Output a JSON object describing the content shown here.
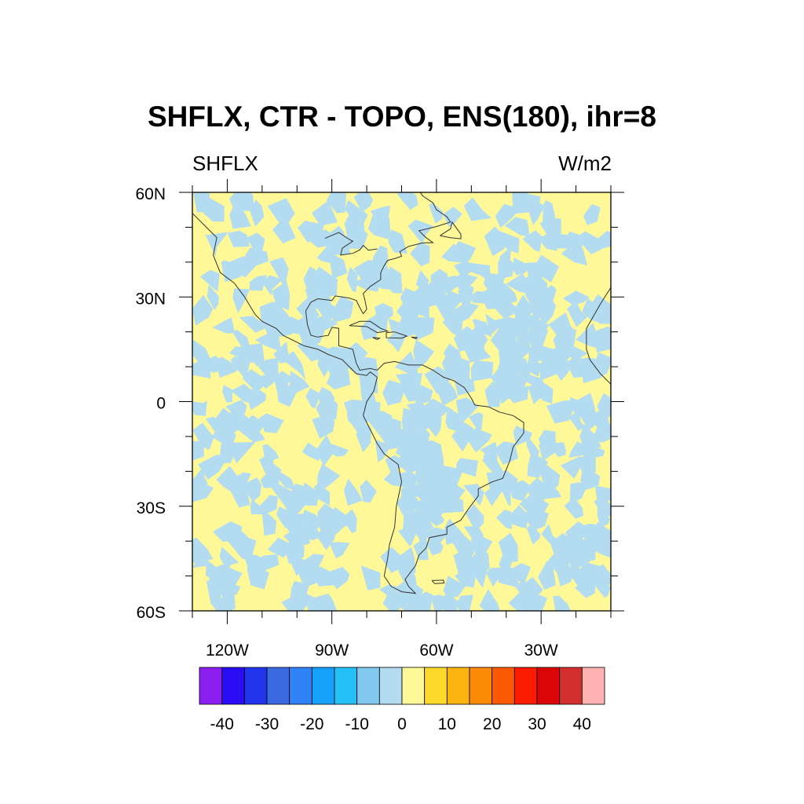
{
  "title": "SHFLX, CTR - TOPO, ENS(180), ihr=8",
  "subtitle_left": "SHFLX",
  "subtitle_right": "W/m2",
  "map": {
    "projection": "cylindrical equidistant",
    "lon_range": [
      -130,
      -10
    ],
    "lat_range": [
      -60,
      60
    ],
    "lat_ticks": [
      {
        "value": 60,
        "label": "60N"
      },
      {
        "value": 30,
        "label": "30N"
      },
      {
        "value": 0,
        "label": "0"
      },
      {
        "value": -30,
        "label": "30S"
      },
      {
        "value": -60,
        "label": "60S"
      }
    ],
    "lon_ticks": [
      {
        "value": -120,
        "label": "120W"
      },
      {
        "value": -90,
        "label": "90W"
      },
      {
        "value": -60,
        "label": "60W"
      },
      {
        "value": -30,
        "label": "30W"
      }
    ],
    "field_colors": {
      "negative_small": "#b4dcf0",
      "positive_small": "#fff898"
    },
    "coastline_color": "#333333"
  },
  "colorbar": {
    "colors": [
      "#8a1ff0",
      "#2a0cf5",
      "#2135ec",
      "#3c6ae0",
      "#2f82f8",
      "#14a0fb",
      "#25c0f8",
      "#82c9ef",
      "#b4dcf0",
      "#fff898",
      "#fcd82a",
      "#fcb411",
      "#fb8a06",
      "#fc5904",
      "#fb1c02",
      "#d90507",
      "#d42e2e",
      "#ffb2b2"
    ],
    "labels": [
      "-40",
      "-30",
      "-20",
      "-10",
      "0",
      "10",
      "20",
      "30",
      "40"
    ]
  }
}
